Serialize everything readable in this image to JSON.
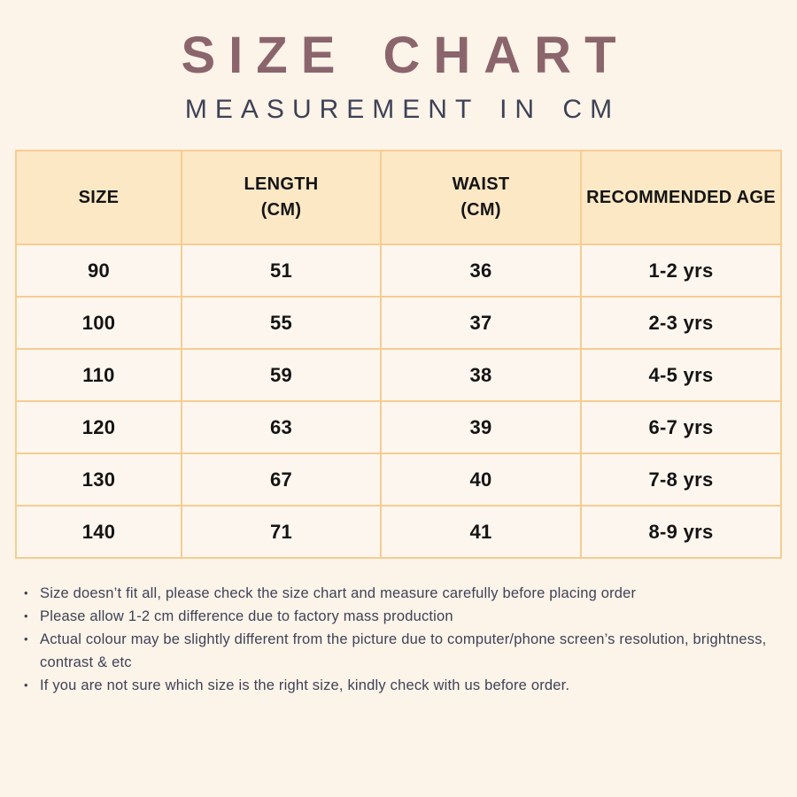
{
  "colors": {
    "page_bg": "#fcf3e9",
    "title": "#8b656c",
    "subtitle": "#3d4255",
    "table_header_bg": "#fce8c5",
    "table_border": "#f5cd92",
    "table_cell_bg": "#fdf6ee",
    "cell_text": "#141414",
    "notes_text": "#3e4356"
  },
  "header": {
    "title": "SIZE CHART",
    "subtitle": "MEASUREMENT IN CM"
  },
  "table": {
    "headers": [
      {
        "line1": "SIZE",
        "line2": ""
      },
      {
        "line1": "LENGTH",
        "line2": "(CM)"
      },
      {
        "line1": "WAIST",
        "line2": "(CM)"
      },
      {
        "line1": "RECOMMENDED AGE",
        "line2": ""
      }
    ],
    "rows": [
      [
        "90",
        "51",
        "36",
        "1-2 yrs"
      ],
      [
        "100",
        "55",
        "37",
        "2-3 yrs"
      ],
      [
        "110",
        "59",
        "38",
        "4-5 yrs"
      ],
      [
        "120",
        "63",
        "39",
        "6-7 yrs"
      ],
      [
        "130",
        "67",
        "40",
        "7-8 yrs"
      ],
      [
        "140",
        "71",
        "41",
        "8-9 yrs"
      ]
    ]
  },
  "notes": {
    "items": [
      "Size doesn’t fit all, please check the size chart and measure carefully before placing order",
      "Please allow 1-2 cm difference due to factory mass production",
      "Actual colour may be slightly different from the picture due to computer/phone screen’s resolution, brightness, contrast & etc",
      "If you are not sure which size is the right size, kindly check with us before order."
    ]
  }
}
